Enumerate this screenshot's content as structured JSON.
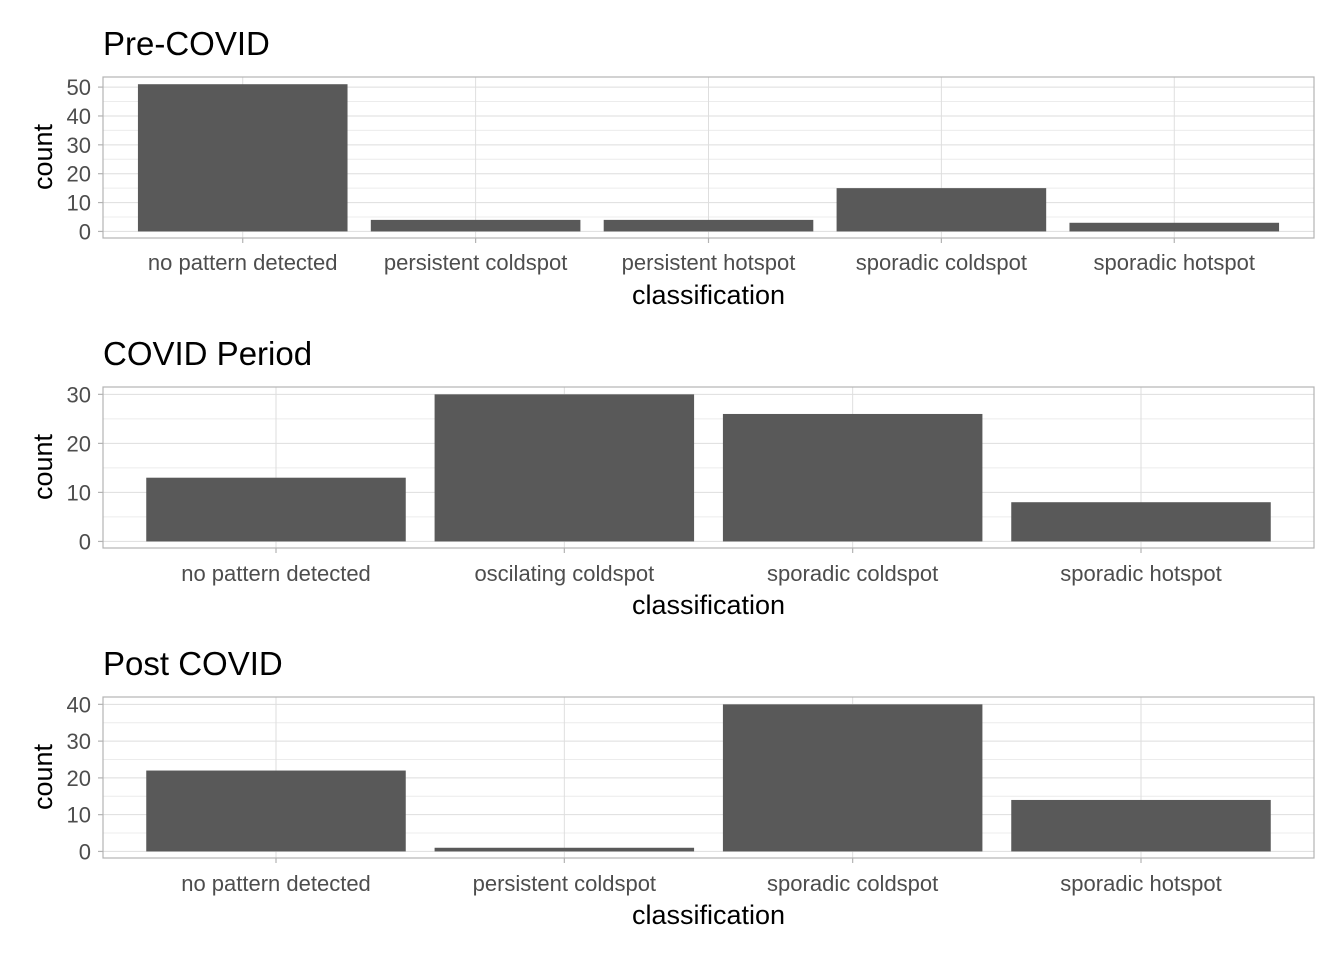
{
  "chart_data": [
    {
      "type": "bar",
      "title": "Pre-COVID",
      "xlabel": "classification",
      "ylabel": "count",
      "categories": [
        "no pattern detected",
        "persistent coldspot",
        "persistent hotspot",
        "sporadic coldspot",
        "sporadic hotspot"
      ],
      "values": [
        51,
        4,
        4,
        15,
        3
      ],
      "ylim": [
        0,
        53.5
      ],
      "yticks": [
        0,
        10,
        20,
        30,
        40,
        50
      ],
      "grid": true
    },
    {
      "type": "bar",
      "title": "COVID Period",
      "xlabel": "classification",
      "ylabel": "count",
      "categories": [
        "no pattern detected",
        "oscilating coldspot",
        "sporadic coldspot",
        "sporadic hotspot"
      ],
      "values": [
        13,
        30,
        26,
        8
      ],
      "ylim": [
        0,
        31.5
      ],
      "yticks": [
        0,
        10,
        20,
        30
      ],
      "grid": true
    },
    {
      "type": "bar",
      "title": "Post COVID",
      "xlabel": "classification",
      "ylabel": "count",
      "categories": [
        "no pattern detected",
        "persistent coldspot",
        "sporadic coldspot",
        "sporadic hotspot"
      ],
      "values": [
        22,
        1,
        40,
        14
      ],
      "ylim": [
        0,
        42
      ],
      "yticks": [
        0,
        10,
        20,
        30,
        40
      ],
      "grid": true
    }
  ],
  "colors": {
    "bar": "#595959",
    "panel_border": "#b3b3b3",
    "grid_major": "#dedede",
    "grid_minor": "#ececec",
    "tick_text": "#4d4d4d"
  }
}
